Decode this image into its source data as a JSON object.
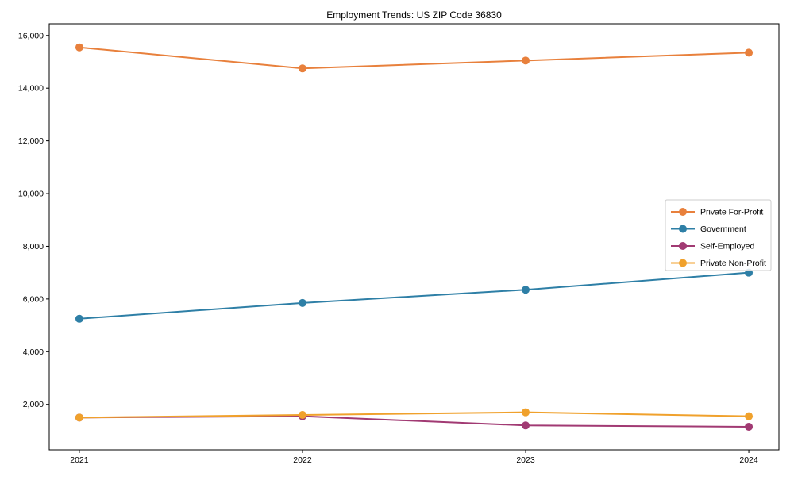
{
  "chart_data": {
    "type": "line",
    "title": "Employment Trends: US ZIP Code 36830",
    "xlabel": "",
    "ylabel": "",
    "x": [
      2021,
      2022,
      2023,
      2024
    ],
    "x_tick_labels": [
      "2021",
      "2022",
      "2023",
      "2024"
    ],
    "series": [
      {
        "name": "Private For-Profit",
        "color": "#e8803c",
        "values": [
          15550,
          14750,
          15050,
          15350
        ]
      },
      {
        "name": "Government",
        "color": "#2e7fa6",
        "values": [
          5250,
          5850,
          6350,
          7000
        ]
      },
      {
        "name": "Self-Employed",
        "color": "#a13a73",
        "values": [
          1500,
          1550,
          1200,
          1150
        ]
      },
      {
        "name": "Private Non-Profit",
        "color": "#f0a12c",
        "values": [
          1500,
          1600,
          1700,
          1550
        ]
      }
    ],
    "yticks": [
      2000,
      4000,
      6000,
      8000,
      10000,
      12000,
      14000,
      16000
    ],
    "ytick_labels": [
      "2,000",
      "4,000",
      "6,000",
      "8,000",
      "10,000",
      "12,000",
      "14,000",
      "16,000"
    ],
    "ylim": [
      275,
      16445
    ],
    "xlim_years": [
      2020.865,
      2024.135
    ],
    "grid": false,
    "marker": "circle",
    "legend_position": "center-right",
    "legend_box": {
      "fill": "#ffffff",
      "opacity": 0.85,
      "border": "#cccccc"
    },
    "axis_color": "#000000",
    "background": "#ffffff"
  }
}
